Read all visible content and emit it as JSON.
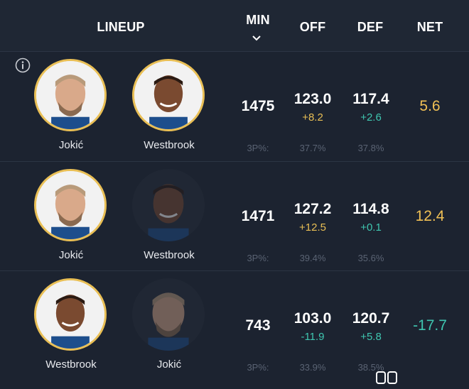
{
  "header": {
    "lineup": "LINEUP",
    "min": "MIN",
    "off": "OFF",
    "def": "DEF",
    "net": "NET"
  },
  "rows": [
    {
      "players": [
        {
          "name": "Jokić",
          "active": true
        },
        {
          "name": "Westbrook",
          "active": true
        }
      ],
      "min": "1475",
      "off": "123.0",
      "off_diff": "+8.2",
      "def": "117.4",
      "def_diff": "+2.6",
      "net": "5.6",
      "tp_label": "3P%:",
      "off_3p": "37.7%",
      "def_3p": "37.8%"
    },
    {
      "players": [
        {
          "name": "Jokić",
          "active": true
        },
        {
          "name": "Westbrook",
          "active": false
        }
      ],
      "min": "1471",
      "off": "127.2",
      "off_diff": "+12.5",
      "def": "114.8",
      "def_diff": "+0.1",
      "net": "12.4",
      "tp_label": "3P%:",
      "off_3p": "39.4%",
      "def_3p": "35.6%"
    },
    {
      "players": [
        {
          "name": "Westbrook",
          "active": true
        },
        {
          "name": "Jokić",
          "active": false
        }
      ],
      "min": "743",
      "off": "103.0",
      "off_diff": "-11.9",
      "def": "120.7",
      "def_diff": "+5.8",
      "net": "-17.7",
      "tp_label": "3P%:",
      "off_3p": "33.9%",
      "def_3p": "38.5%"
    }
  ],
  "colors": {
    "background": "#1c2330",
    "accent_gold": "#e9bf55",
    "accent_teal": "#3fc6b0",
    "muted": "#5a6373"
  },
  "icons": {
    "info": "info-icon",
    "sort": "chevron-down-icon"
  }
}
